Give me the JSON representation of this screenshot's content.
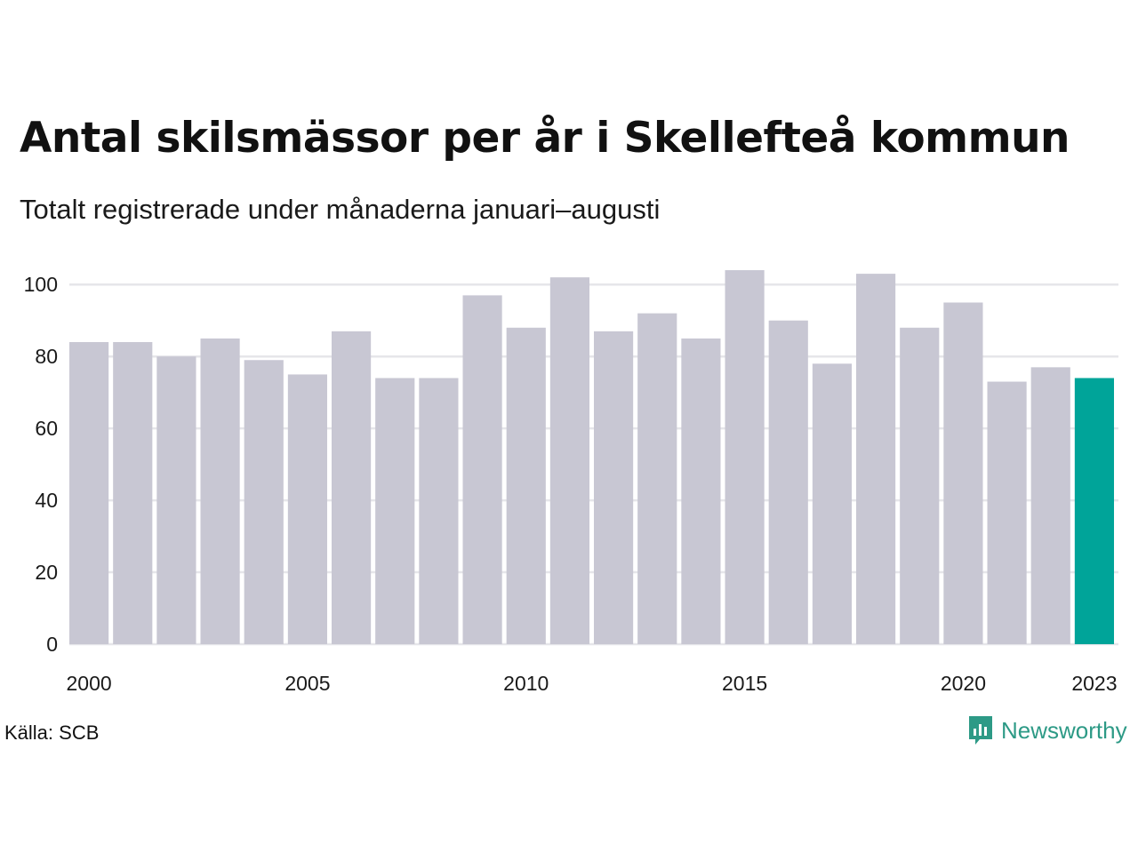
{
  "header": {
    "title": "Antal skilsmässor per år i Skellefteå kommun",
    "subtitle": "Totalt registrerade under månaderna januari–augusti"
  },
  "footer": {
    "source": "Källa: SCB",
    "brand": "Newsworthy"
  },
  "colors": {
    "bar": "#c8c7d3",
    "highlight": "#00a499",
    "grid": "#e6e6ea",
    "brand": "#2d9a86"
  },
  "icons": {
    "brand_logo": "newsworthy-logo-icon"
  },
  "chart_data": {
    "type": "bar",
    "categories": [
      "2000",
      "2001",
      "2002",
      "2003",
      "2004",
      "2005",
      "2006",
      "2007",
      "2008",
      "2009",
      "2010",
      "2011",
      "2012",
      "2013",
      "2014",
      "2015",
      "2016",
      "2017",
      "2018",
      "2019",
      "2020",
      "2021",
      "2022",
      "2023"
    ],
    "values": [
      84,
      84,
      80,
      85,
      79,
      75,
      87,
      74,
      74,
      97,
      88,
      102,
      87,
      92,
      85,
      104,
      90,
      78,
      103,
      88,
      95,
      73,
      77,
      74
    ],
    "highlight": "2023",
    "x_tick_labels": [
      "2000",
      "2005",
      "2010",
      "2015",
      "2020",
      "2023"
    ],
    "y_ticks": [
      0,
      20,
      40,
      60,
      80,
      100
    ],
    "ylim": [
      0,
      105
    ],
    "grid": true,
    "title": "Antal skilsmässor per år i Skellefteå kommun",
    "subtitle": "Totalt registrerade under månaderna januari–augusti"
  }
}
